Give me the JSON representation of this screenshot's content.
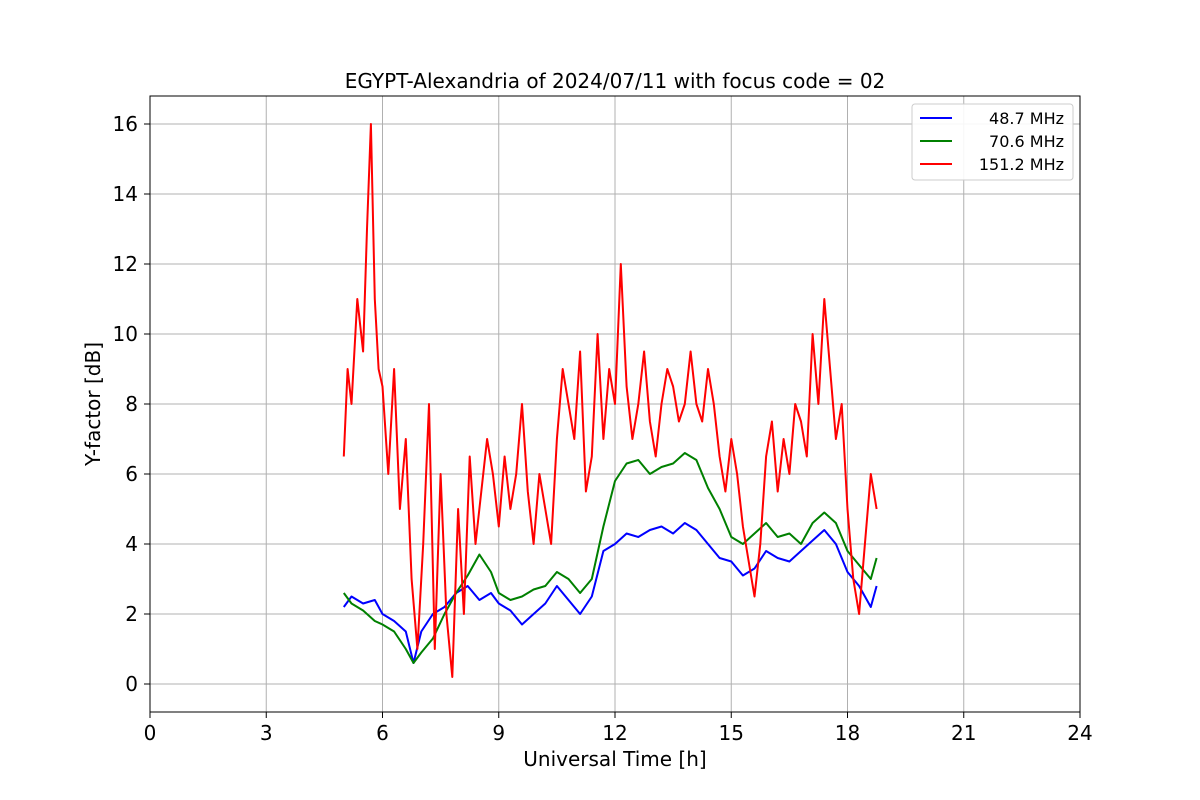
{
  "chart_data": {
    "type": "line",
    "title": "EGYPT-Alexandria of 2024/07/11 with focus code = 02",
    "xlabel": "Universal Time [h]",
    "ylabel": "Y-factor [dB]",
    "xlim": [
      0,
      24
    ],
    "ylim": [
      -0.8,
      16.8
    ],
    "xticks": [
      0,
      3,
      6,
      9,
      12,
      15,
      18,
      21,
      24
    ],
    "yticks": [
      0,
      2,
      4,
      6,
      8,
      10,
      12,
      14,
      16
    ],
    "grid": true,
    "legend_position": "top-right",
    "series": [
      {
        "name": "48.7 MHz",
        "color": "#0000ff",
        "x": [
          5.0,
          5.2,
          5.5,
          5.8,
          6.0,
          6.3,
          6.6,
          6.8,
          7.0,
          7.3,
          7.6,
          7.9,
          8.2,
          8.5,
          8.8,
          9.0,
          9.3,
          9.6,
          9.9,
          10.2,
          10.5,
          10.8,
          11.1,
          11.4,
          11.7,
          12.0,
          12.3,
          12.6,
          12.9,
          13.2,
          13.5,
          13.8,
          14.1,
          14.4,
          14.7,
          15.0,
          15.3,
          15.6,
          15.9,
          16.2,
          16.5,
          16.8,
          17.1,
          17.4,
          17.7,
          18.0,
          18.3,
          18.6,
          18.75
        ],
        "y": [
          2.2,
          2.5,
          2.3,
          2.4,
          2.0,
          1.8,
          1.5,
          0.6,
          1.5,
          2.0,
          2.2,
          2.6,
          2.8,
          2.4,
          2.6,
          2.3,
          2.1,
          1.7,
          2.0,
          2.3,
          2.8,
          2.4,
          2.0,
          2.5,
          3.8,
          4.0,
          4.3,
          4.2,
          4.4,
          4.5,
          4.3,
          4.6,
          4.4,
          4.0,
          3.6,
          3.5,
          3.1,
          3.3,
          3.8,
          3.6,
          3.5,
          3.8,
          4.1,
          4.4,
          4.0,
          3.2,
          2.8,
          2.2,
          2.8
        ]
      },
      {
        "name": "70.6 MHz",
        "color": "#008000",
        "x": [
          5.0,
          5.2,
          5.5,
          5.8,
          6.0,
          6.3,
          6.6,
          6.8,
          7.0,
          7.3,
          7.6,
          7.9,
          8.2,
          8.5,
          8.8,
          9.0,
          9.3,
          9.6,
          9.9,
          10.2,
          10.5,
          10.8,
          11.1,
          11.4,
          11.7,
          12.0,
          12.3,
          12.6,
          12.9,
          13.2,
          13.5,
          13.8,
          14.1,
          14.4,
          14.7,
          15.0,
          15.3,
          15.6,
          15.9,
          16.2,
          16.5,
          16.8,
          17.1,
          17.4,
          17.7,
          18.0,
          18.3,
          18.6,
          18.75
        ],
        "y": [
          2.6,
          2.3,
          2.1,
          1.8,
          1.7,
          1.5,
          1.0,
          0.6,
          0.9,
          1.3,
          2.0,
          2.6,
          3.1,
          3.7,
          3.2,
          2.6,
          2.4,
          2.5,
          2.7,
          2.8,
          3.2,
          3.0,
          2.6,
          3.0,
          4.5,
          5.8,
          6.3,
          6.4,
          6.0,
          6.2,
          6.3,
          6.6,
          6.4,
          5.6,
          5.0,
          4.2,
          4.0,
          4.3,
          4.6,
          4.2,
          4.3,
          4.0,
          4.6,
          4.9,
          4.6,
          3.8,
          3.4,
          3.0,
          3.6
        ]
      },
      {
        "name": "151.2 MHz",
        "color": "#ff0000",
        "x": [
          5.0,
          5.1,
          5.2,
          5.35,
          5.5,
          5.6,
          5.7,
          5.8,
          5.9,
          6.0,
          6.15,
          6.3,
          6.45,
          6.6,
          6.75,
          6.9,
          7.05,
          7.2,
          7.35,
          7.5,
          7.65,
          7.8,
          7.95,
          8.1,
          8.25,
          8.4,
          8.55,
          8.7,
          8.85,
          9.0,
          9.15,
          9.3,
          9.45,
          9.6,
          9.75,
          9.9,
          10.05,
          10.2,
          10.35,
          10.5,
          10.65,
          10.8,
          10.95,
          11.1,
          11.25,
          11.4,
          11.55,
          11.7,
          11.85,
          12.0,
          12.15,
          12.3,
          12.45,
          12.6,
          12.75,
          12.9,
          13.05,
          13.2,
          13.35,
          13.5,
          13.65,
          13.8,
          13.95,
          14.1,
          14.25,
          14.4,
          14.55,
          14.7,
          14.85,
          15.0,
          15.15,
          15.3,
          15.45,
          15.6,
          15.75,
          15.9,
          16.05,
          16.2,
          16.35,
          16.5,
          16.65,
          16.8,
          16.95,
          17.1,
          17.25,
          17.4,
          17.55,
          17.7,
          17.85,
          18.0,
          18.15,
          18.3,
          18.45,
          18.6,
          18.75
        ],
        "y": [
          6.5,
          9.0,
          8.0,
          11.0,
          9.5,
          13.0,
          16.0,
          11.0,
          9.0,
          8.5,
          6.0,
          9.0,
          5.0,
          7.0,
          3.0,
          1.0,
          4.0,
          8.0,
          1.0,
          6.0,
          2.0,
          0.2,
          5.0,
          2.0,
          6.5,
          4.0,
          5.5,
          7.0,
          6.0,
          4.5,
          6.5,
          5.0,
          6.0,
          8.0,
          5.5,
          4.0,
          6.0,
          5.0,
          4.0,
          7.0,
          9.0,
          8.0,
          7.0,
          9.5,
          5.5,
          6.5,
          10.0,
          7.0,
          9.0,
          8.0,
          12.0,
          8.5,
          7.0,
          8.0,
          9.5,
          7.5,
          6.5,
          8.0,
          9.0,
          8.5,
          7.5,
          8.0,
          9.5,
          8.0,
          7.5,
          9.0,
          8.0,
          6.5,
          5.5,
          7.0,
          6.0,
          4.5,
          3.5,
          2.5,
          4.0,
          6.5,
          7.5,
          5.5,
          7.0,
          6.0,
          8.0,
          7.5,
          6.5,
          10.0,
          8.0,
          11.0,
          9.0,
          7.0,
          8.0,
          5.0,
          3.0,
          2.0,
          4.0,
          6.0,
          5.0
        ]
      }
    ]
  }
}
